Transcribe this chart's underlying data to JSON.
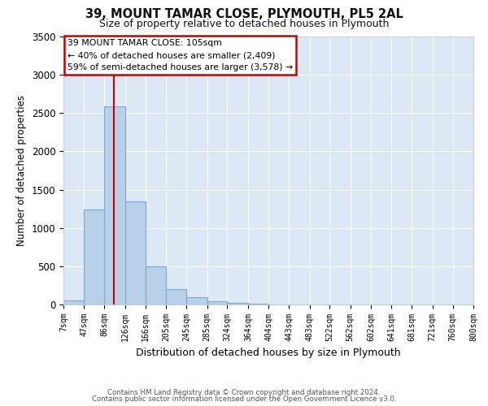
{
  "title": "39, MOUNT TAMAR CLOSE, PLYMOUTH, PL5 2AL",
  "subtitle": "Size of property relative to detached houses in Plymouth",
  "xlabel": "Distribution of detached houses by size in Plymouth",
  "ylabel": "Number of detached properties",
  "bar_color": "#b8d0e8",
  "bar_edgecolor": "#7aaacf",
  "axes_bg_color": "#dce8f5",
  "fig_bg_color": "#ffffff",
  "grid_color": "#ffffff",
  "red_line_x": 105,
  "annotation_line1": "39 MOUNT TAMAR CLOSE: 105sqm",
  "annotation_line2": "← 40% of detached houses are smaller (2,409)",
  "annotation_line3": "59% of semi-detached houses are larger (3,578) →",
  "footer_line1": "Contains HM Land Registry data © Crown copyright and database right 2024.",
  "footer_line2": "Contains public sector information licensed under the Open Government Licence v3.0.",
  "bin_edges": [
    7,
    47,
    86,
    126,
    166,
    205,
    245,
    285,
    324,
    364,
    404,
    443,
    483,
    522,
    562,
    602,
    641,
    681,
    721,
    760,
    800
  ],
  "bin_heights": [
    50,
    1240,
    2590,
    1350,
    500,
    200,
    100,
    40,
    20,
    10,
    5,
    5,
    5,
    2,
    2,
    1,
    1,
    1,
    1,
    1
  ],
  "tick_labels": [
    "7sqm",
    "47sqm",
    "86sqm",
    "126sqm",
    "166sqm",
    "205sqm",
    "245sqm",
    "285sqm",
    "324sqm",
    "364sqm",
    "404sqm",
    "443sqm",
    "483sqm",
    "522sqm",
    "562sqm",
    "602sqm",
    "641sqm",
    "681sqm",
    "721sqm",
    "760sqm",
    "800sqm"
  ],
  "ylim": [
    0,
    3500
  ],
  "yticks": [
    0,
    500,
    1000,
    1500,
    2000,
    2500,
    3000,
    3500
  ]
}
